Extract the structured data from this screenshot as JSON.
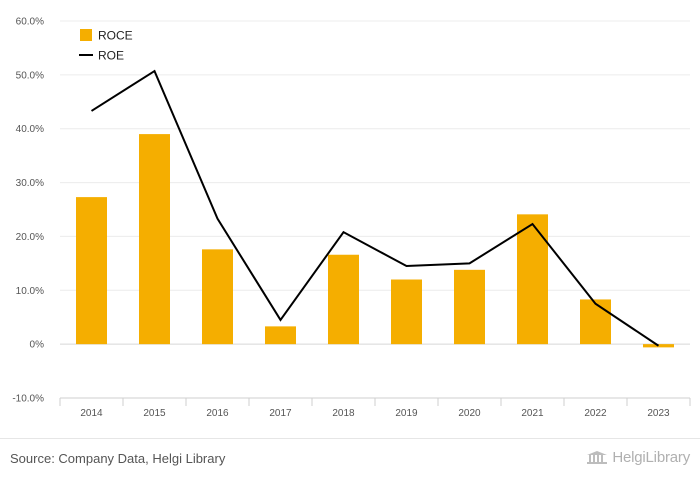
{
  "chart_data": {
    "type": "bar",
    "categories": [
      "2014",
      "2015",
      "2016",
      "2017",
      "2018",
      "2019",
      "2020",
      "2021",
      "2022",
      "2023"
    ],
    "series": [
      {
        "name": "ROCE",
        "type": "bar",
        "color": "#f5ae00",
        "values": [
          27.3,
          39.0,
          17.6,
          3.3,
          16.6,
          12.0,
          13.8,
          24.1,
          8.3,
          -0.6
        ]
      },
      {
        "name": "ROE",
        "type": "line",
        "color": "#000000",
        "values": [
          43.3,
          50.7,
          23.3,
          4.5,
          20.8,
          14.5,
          15.0,
          22.3,
          7.5,
          -0.3
        ]
      }
    ],
    "y_ticks": [
      "60.0%",
      "50.0%",
      "40.0%",
      "30.0%",
      "20.0%",
      "10.0%",
      "0%",
      "-10.0%"
    ],
    "ylim": [
      -10,
      60
    ],
    "grid": true,
    "legend_position": "top-left"
  },
  "footer": {
    "source": "Source: Company Data, Helgi Library",
    "brand": "HelgiLibrary"
  }
}
